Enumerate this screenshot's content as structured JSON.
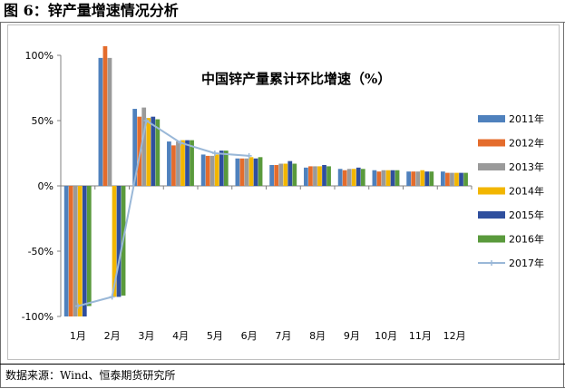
{
  "page": {
    "title": "图 6：锌产量增速情况分析"
  },
  "source": {
    "text": "数据来源：Wind、恒泰期货研究所"
  },
  "colors": {
    "2011年": "#4f81bd",
    "2012年": "#e46c2c",
    "2013年": "#9a9a9a",
    "2014年": "#f2b600",
    "2015年": "#2f4f9e",
    "2016年": "#5a9a3c",
    "2017年": "#9ab8d8"
  },
  "chart_data": {
    "type": "bar",
    "title": "中国锌产量累计环比增速（%）",
    "categories": [
      "1月",
      "2月",
      "3月",
      "4月",
      "5月",
      "6月",
      "7月",
      "8月",
      "9月",
      "10月",
      "11月",
      "12月"
    ],
    "ylim": [
      -100,
      100
    ],
    "yticks": [
      "100%",
      "50%",
      "0%",
      "-50%",
      "-100%"
    ],
    "ytick_values": [
      100,
      50,
      0,
      -50,
      -100
    ],
    "legend_position": "right",
    "series": [
      {
        "name": "2011年",
        "type": "bar",
        "values": [
          -100,
          98,
          59,
          34,
          24,
          21,
          16,
          14,
          13,
          12,
          11,
          11
        ]
      },
      {
        "name": "2012年",
        "type": "bar",
        "values": [
          -100,
          107,
          53,
          31,
          23,
          21,
          16,
          15,
          12,
          11,
          11,
          10
        ]
      },
      {
        "name": "2013年",
        "type": "bar",
        "values": [
          -100,
          98,
          60,
          34,
          23,
          21,
          17,
          15,
          13,
          12,
          11,
          10
        ]
      },
      {
        "name": "2014年",
        "type": "bar",
        "values": [
          -100,
          -85,
          52,
          35,
          24,
          22,
          17,
          15,
          13,
          12,
          12,
          10
        ]
      },
      {
        "name": "2015年",
        "type": "bar",
        "values": [
          -100,
          -85,
          53,
          35,
          27,
          21,
          19,
          16,
          14,
          12,
          11,
          10
        ]
      },
      {
        "name": "2016年",
        "type": "bar",
        "values": [
          -92,
          -84,
          51,
          35,
          27,
          22,
          17,
          15,
          13,
          12,
          11,
          10
        ]
      },
      {
        "name": "2017年",
        "type": "line",
        "values": [
          -92,
          -85,
          50,
          33,
          25,
          23,
          null,
          null,
          null,
          null,
          null,
          null
        ]
      }
    ]
  }
}
